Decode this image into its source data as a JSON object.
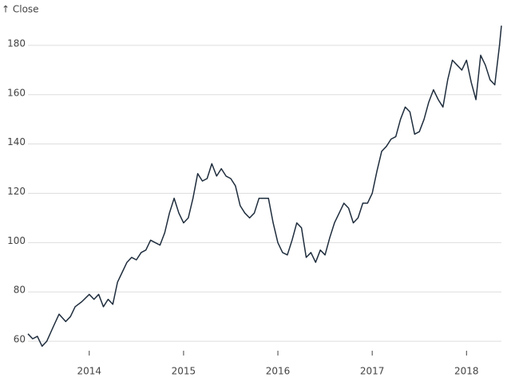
{
  "chart_data": {
    "type": "line",
    "y_label": "↑ Close",
    "color": "#1f2d3d",
    "grid": true,
    "xlim": [
      2013.35,
      2018.37
    ],
    "xticks": [
      2014,
      2015,
      2016,
      2017,
      2018
    ],
    "ylim": [
      56.8,
      190
    ],
    "yticks": [
      60,
      80,
      100,
      120,
      140,
      160,
      180
    ],
    "x": [
      2013.35,
      2013.4,
      2013.45,
      2013.5,
      2013.55,
      2013.62,
      2013.68,
      2013.75,
      2013.8,
      2013.85,
      2013.92,
      2014.0,
      2014.05,
      2014.1,
      2014.15,
      2014.2,
      2014.25,
      2014.3,
      2014.35,
      2014.4,
      2014.45,
      2014.5,
      2014.55,
      2014.6,
      2014.65,
      2014.7,
      2014.75,
      2014.8,
      2014.85,
      2014.9,
      2014.95,
      2015.0,
      2015.05,
      2015.1,
      2015.15,
      2015.2,
      2015.25,
      2015.3,
      2015.35,
      2015.4,
      2015.45,
      2015.5,
      2015.55,
      2015.6,
      2015.65,
      2015.7,
      2015.75,
      2015.8,
      2015.85,
      2015.9,
      2015.95,
      2016.0,
      2016.05,
      2016.1,
      2016.15,
      2016.2,
      2016.25,
      2016.3,
      2016.35,
      2016.4,
      2016.45,
      2016.5,
      2016.55,
      2016.6,
      2016.65,
      2016.7,
      2016.75,
      2016.8,
      2016.85,
      2016.9,
      2016.95,
      2017.0,
      2017.05,
      2017.1,
      2017.15,
      2017.2,
      2017.25,
      2017.3,
      2017.35,
      2017.4,
      2017.45,
      2017.5,
      2017.55,
      2017.6,
      2017.65,
      2017.7,
      2017.75,
      2017.8,
      2017.85,
      2017.9,
      2017.95,
      2018.0,
      2018.05,
      2018.1,
      2018.15,
      2018.2,
      2018.25,
      2018.3,
      2018.35,
      2018.37
    ],
    "values": [
      63,
      61,
      62,
      58,
      60,
      66,
      71,
      68,
      70,
      74,
      76,
      79,
      77,
      79,
      74,
      77,
      75,
      84,
      88,
      92,
      94,
      93,
      96,
      97,
      101,
      100,
      99,
      104,
      112,
      118,
      112,
      108,
      110,
      118,
      128,
      125,
      126,
      132,
      127,
      130,
      127,
      126,
      123,
      115,
      112,
      110,
      112,
      118,
      118,
      118,
      108,
      100,
      96,
      95,
      101,
      108,
      106,
      94,
      96,
      92,
      97,
      95,
      102,
      108,
      112,
      116,
      114,
      108,
      110,
      116,
      116,
      120,
      129,
      137,
      139,
      142,
      143,
      150,
      155,
      153,
      144,
      145,
      150,
      157,
      162,
      158,
      155,
      166,
      174,
      172,
      170,
      174,
      165,
      158,
      176,
      172,
      166,
      164,
      180,
      188
    ]
  }
}
